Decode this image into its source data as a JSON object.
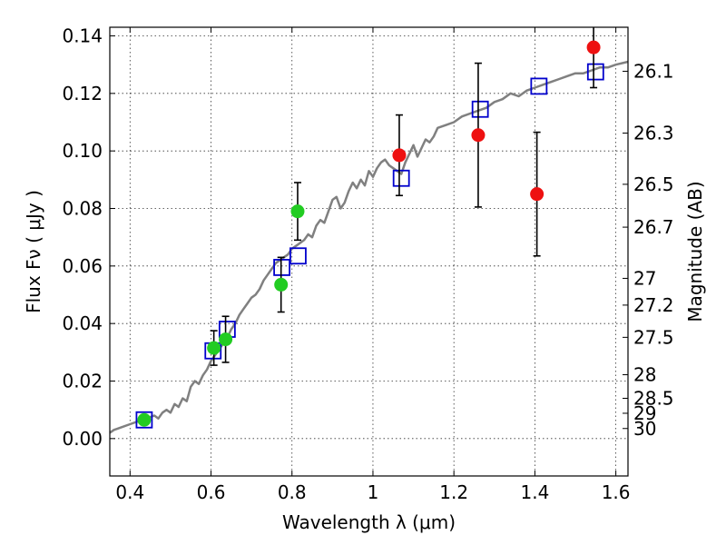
{
  "chart_data": {
    "type": "scatter",
    "title": "",
    "xlabel": "Wavelength  λ (μm)",
    "ylabel": "Flux  Fν  ( μJy )",
    "ylabel_right": "Magnitude (AB)",
    "xlim": [
      0.35,
      1.63
    ],
    "ylim": [
      -0.013,
      0.143
    ],
    "grid": true,
    "x_ticks": [
      0.4,
      0.6,
      0.8,
      1.0,
      1.2,
      1.4,
      1.6
    ],
    "x_tick_labels": [
      "0.4",
      "0.6",
      "0.8",
      "1",
      "1.2",
      "1.4",
      "1.6"
    ],
    "y_ticks": [
      0.0,
      0.02,
      0.04,
      0.06,
      0.08,
      0.1,
      0.12,
      0.14
    ],
    "y_tick_labels": [
      "0.00",
      "0.02",
      "0.04",
      "0.06",
      "0.08",
      "0.10",
      "0.12",
      "0.14"
    ],
    "right_ticks": [
      {
        "label": "26.1",
        "flux": 0.1277
      },
      {
        "label": "26.3",
        "flux": 0.1062
      },
      {
        "label": "26.5",
        "flux": 0.0884
      },
      {
        "label": "26.7",
        "flux": 0.0735
      },
      {
        "label": "27",
        "flux": 0.0557
      },
      {
        "label": "27.2",
        "flux": 0.0464
      },
      {
        "label": "27.5",
        "flux": 0.0352
      },
      {
        "label": "28",
        "flux": 0.0222
      },
      {
        "label": "28.5",
        "flux": 0.014
      },
      {
        "label": "29",
        "flux": 0.0088
      },
      {
        "label": "30",
        "flux": 0.0035
      }
    ],
    "series": [
      {
        "color": "#808080",
        "type": "line",
        "x": [
          0.35,
          0.36,
          0.38,
          0.4,
          0.42,
          0.44,
          0.46,
          0.47,
          0.48,
          0.49,
          0.5,
          0.51,
          0.52,
          0.53,
          0.54,
          0.55,
          0.56,
          0.57,
          0.58,
          0.59,
          0.6,
          0.61,
          0.62,
          0.63,
          0.64,
          0.65,
          0.66,
          0.67,
          0.68,
          0.69,
          0.7,
          0.71,
          0.72,
          0.73,
          0.74,
          0.75,
          0.76,
          0.77,
          0.78,
          0.79,
          0.8,
          0.81,
          0.82,
          0.83,
          0.84,
          0.85,
          0.86,
          0.87,
          0.88,
          0.89,
          0.9,
          0.91,
          0.92,
          0.93,
          0.94,
          0.95,
          0.96,
          0.97,
          0.98,
          0.99,
          1.0,
          1.01,
          1.02,
          1.03,
          1.04,
          1.05,
          1.06,
          1.07,
          1.08,
          1.09,
          1.1,
          1.11,
          1.12,
          1.13,
          1.14,
          1.15,
          1.16,
          1.18,
          1.2,
          1.22,
          1.24,
          1.26,
          1.28,
          1.3,
          1.32,
          1.34,
          1.36,
          1.38,
          1.4,
          1.42,
          1.44,
          1.46,
          1.48,
          1.5,
          1.52,
          1.54,
          1.56,
          1.58,
          1.6,
          1.63
        ],
        "y": [
          0.002,
          0.003,
          0.004,
          0.005,
          0.006,
          0.007,
          0.008,
          0.007,
          0.009,
          0.01,
          0.009,
          0.012,
          0.011,
          0.014,
          0.013,
          0.018,
          0.02,
          0.019,
          0.022,
          0.024,
          0.027,
          0.029,
          0.031,
          0.033,
          0.035,
          0.038,
          0.04,
          0.043,
          0.045,
          0.047,
          0.049,
          0.05,
          0.052,
          0.055,
          0.057,
          0.059,
          0.061,
          0.062,
          0.063,
          0.064,
          0.066,
          0.067,
          0.068,
          0.069,
          0.071,
          0.07,
          0.074,
          0.076,
          0.075,
          0.079,
          0.083,
          0.084,
          0.08,
          0.082,
          0.086,
          0.089,
          0.087,
          0.09,
          0.088,
          0.093,
          0.091,
          0.094,
          0.096,
          0.097,
          0.095,
          0.094,
          0.093,
          0.092,
          0.096,
          0.099,
          0.102,
          0.098,
          0.101,
          0.104,
          0.103,
          0.105,
          0.108,
          0.109,
          0.11,
          0.112,
          0.113,
          0.114,
          0.115,
          0.117,
          0.118,
          0.12,
          0.119,
          0.121,
          0.122,
          0.123,
          0.124,
          0.125,
          0.126,
          0.127,
          0.127,
          0.128,
          0.129,
          0.129,
          0.13,
          0.131
        ]
      },
      {
        "color": "#0000cc",
        "type": "open-square",
        "x": [
          0.435,
          0.605,
          0.64,
          0.775,
          0.815,
          1.07,
          1.265,
          1.41,
          1.55
        ],
        "y": [
          0.0065,
          0.0305,
          0.038,
          0.0595,
          0.0635,
          0.0905,
          0.1145,
          0.1225,
          0.1275
        ]
      },
      {
        "color": "#22cc22",
        "type": "filled-circle",
        "x": [
          0.435,
          0.607,
          0.636,
          0.773,
          0.814
        ],
        "y": [
          0.0065,
          0.0315,
          0.0345,
          0.0535,
          0.079
        ],
        "yerr": [
          0,
          0.006,
          0.008,
          0.0095,
          0.01
        ]
      },
      {
        "color": "#ee1111",
        "type": "filled-circle",
        "x": [
          1.065,
          1.26,
          1.405,
          1.545
        ],
        "y": [
          0.0985,
          0.1055,
          0.085,
          0.136
        ],
        "yerr": [
          0.014,
          0.025,
          0.0215,
          0.014
        ]
      }
    ]
  }
}
